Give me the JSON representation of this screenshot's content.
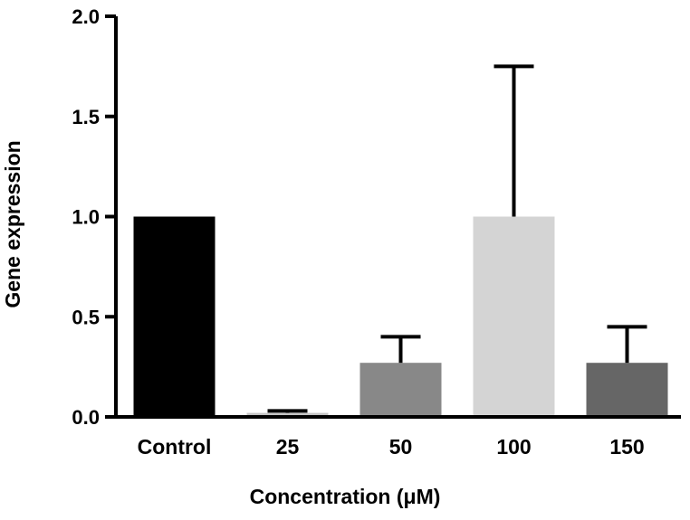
{
  "chart_data": {
    "type": "bar",
    "title": "",
    "xlabel": "Concentration (μM)",
    "ylabel": "Gene expression",
    "ylim": [
      0,
      2.0
    ],
    "yticks": [
      0.0,
      0.5,
      1.0,
      1.5,
      2.0
    ],
    "ytick_labels": [
      "0.0",
      "0.5",
      "1.0",
      "1.5",
      "2.0"
    ],
    "categories": [
      "Control",
      "25",
      "50",
      "100",
      "150"
    ],
    "values": [
      1.0,
      0.02,
      0.27,
      1.0,
      0.27
    ],
    "errors": [
      0.0,
      0.01,
      0.13,
      0.75,
      0.18
    ],
    "colors": [
      "#000000",
      "#c4c4c4",
      "#888888",
      "#d4d4d4",
      "#666666"
    ],
    "grid": false,
    "legend": "none"
  }
}
